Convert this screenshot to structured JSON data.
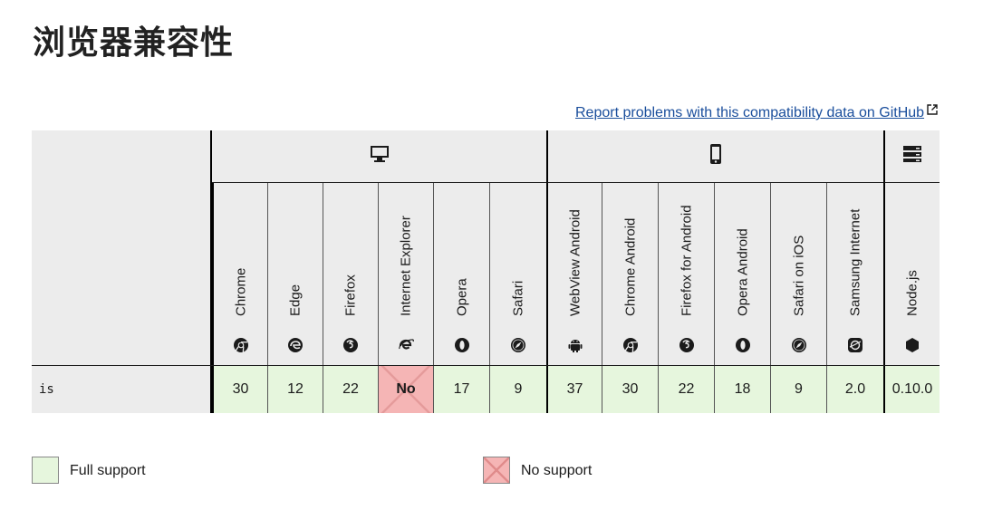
{
  "page": {
    "title": "浏览器兼容性",
    "report_link": "Report problems with this compatibility data on GitHub"
  },
  "compat_table": {
    "platforms": [
      {
        "name": "desktop",
        "icon": "desktop-icon"
      },
      {
        "name": "mobile",
        "icon": "mobile-icon"
      },
      {
        "name": "server",
        "icon": "server-icon"
      }
    ],
    "browsers": [
      {
        "label": "Chrome",
        "icon": "chrome-icon"
      },
      {
        "label": "Edge",
        "icon": "edge-icon"
      },
      {
        "label": "Firefox",
        "icon": "firefox-icon"
      },
      {
        "label": "Internet Explorer",
        "icon": "ie-icon"
      },
      {
        "label": "Opera",
        "icon": "opera-icon"
      },
      {
        "label": "Safari",
        "icon": "safari-icon"
      },
      {
        "label": "WebView Android",
        "icon": "android-icon"
      },
      {
        "label": "Chrome Android",
        "icon": "chrome-icon"
      },
      {
        "label": "Firefox for Android",
        "icon": "firefox-icon"
      },
      {
        "label": "Opera Android",
        "icon": "opera-icon"
      },
      {
        "label": "Safari on iOS",
        "icon": "safari-icon"
      },
      {
        "label": "Samsung Internet",
        "icon": "samsung-icon"
      },
      {
        "label": "Node.js",
        "icon": "nodejs-icon"
      }
    ],
    "rows": [
      {
        "feature": "is",
        "support": [
          "30",
          "12",
          "22",
          "No",
          "17",
          "9",
          "37",
          "30",
          "22",
          "18",
          "9",
          "2.0",
          "0.10.0"
        ],
        "status": [
          "yes",
          "yes",
          "yes",
          "no",
          "yes",
          "yes",
          "yes",
          "yes",
          "yes",
          "yes",
          "yes",
          "yes",
          "yes"
        ]
      }
    ]
  },
  "legend": {
    "full_support": "Full support",
    "no_support": "No support"
  },
  "colors": {
    "full_support_bg": "#e6f6dd",
    "no_support_bg": "#f5b5b5",
    "link": "#1a4e9c",
    "header_bg": "#ececec"
  }
}
